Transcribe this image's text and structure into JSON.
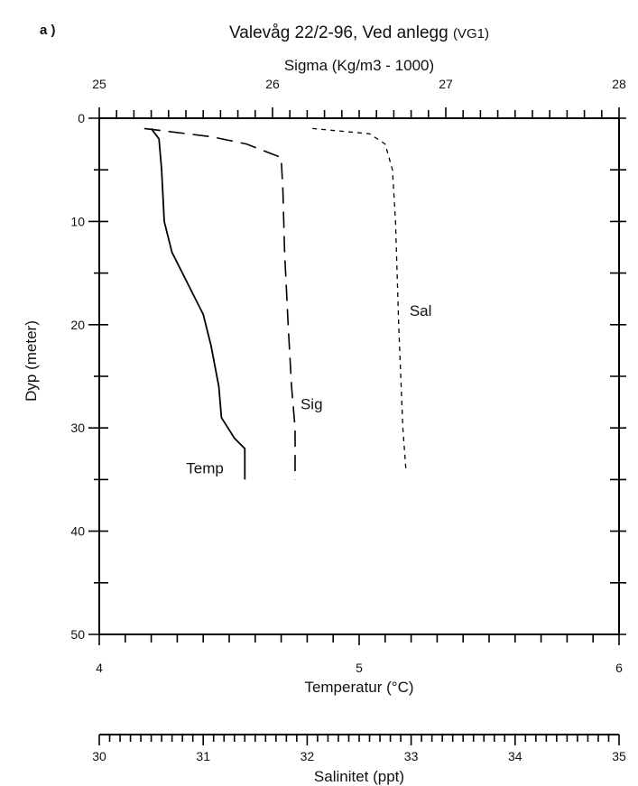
{
  "panel_label": "a )",
  "title_main": "Valevåg 22/2-96, Ved anlegg ",
  "title_station": "(VG1)",
  "colors": {
    "ink": "#000000",
    "background": "#ffffff"
  },
  "chart_data": {
    "type": "line",
    "title": "Valevåg 22/2-96, Ved anlegg (VG1)",
    "ylabel": "Dyp (meter)",
    "y_range": [
      0,
      50
    ],
    "y_ticks": [
      "0",
      "10",
      "20",
      "30",
      "40",
      "50"
    ],
    "y_inverted": true,
    "grid": false,
    "axes": {
      "sigma": {
        "label": "Sigma   (Kg/m3 - 1000)",
        "range": [
          25,
          28
        ],
        "ticks": [
          "25",
          "26",
          "27",
          "28"
        ],
        "position": "top"
      },
      "temperature": {
        "label": "Temperatur (°C)",
        "range": [
          4,
          6
        ],
        "ticks": [
          "4",
          "5",
          "6"
        ],
        "position": "bottom"
      },
      "salinity": {
        "label": "Salinitet (ppt)",
        "range": [
          30,
          35
        ],
        "ticks": [
          "30",
          "31",
          "32",
          "33",
          "34",
          "35"
        ],
        "position": "bottom-secondary"
      }
    },
    "series": [
      {
        "name": "Temp",
        "axis": "temperature",
        "dash": "solid",
        "points": [
          [
            4.2,
            1
          ],
          [
            4.23,
            2
          ],
          [
            4.24,
            5
          ],
          [
            4.25,
            10
          ],
          [
            4.28,
            13
          ],
          [
            4.34,
            16
          ],
          [
            4.4,
            19
          ],
          [
            4.43,
            22
          ],
          [
            4.46,
            26
          ],
          [
            4.47,
            29
          ],
          [
            4.52,
            31
          ],
          [
            4.56,
            32
          ],
          [
            4.56,
            35
          ]
        ]
      },
      {
        "name": "Sig",
        "axis": "sigma",
        "dash": "long",
        "points": [
          [
            25.26,
            1
          ],
          [
            25.65,
            1.8
          ],
          [
            25.85,
            2.5
          ],
          [
            26.05,
            3.8
          ],
          [
            26.06,
            7
          ],
          [
            26.07,
            13
          ],
          [
            26.09,
            20
          ],
          [
            26.11,
            26
          ],
          [
            26.13,
            30
          ],
          [
            26.13,
            35
          ]
        ]
      },
      {
        "name": "Sal",
        "axis": "salinity",
        "dash": "short",
        "points": [
          [
            32.05,
            1
          ],
          [
            32.6,
            1.5
          ],
          [
            32.75,
            2.5
          ],
          [
            32.82,
            5
          ],
          [
            32.85,
            10
          ],
          [
            32.88,
            20
          ],
          [
            32.92,
            30
          ],
          [
            32.95,
            34
          ]
        ]
      }
    ]
  }
}
